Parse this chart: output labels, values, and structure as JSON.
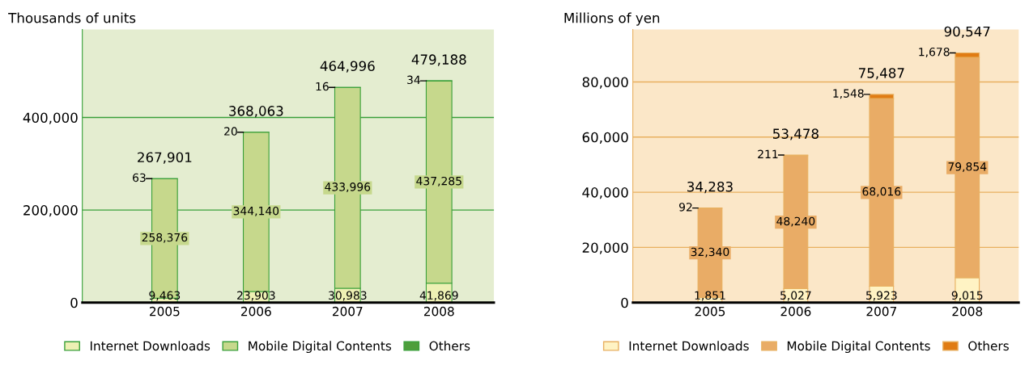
{
  "chart_data": [
    {
      "type": "bar",
      "title": "Thousands of units",
      "stacked": true,
      "categories": [
        "2005",
        "2006",
        "2007",
        "2008"
      ],
      "series": [
        {
          "name": "Internet Downloads",
          "color": "#eef0b4",
          "values": [
            9463,
            23903,
            30983,
            41869
          ],
          "value_labels": [
            "9,463",
            "23,903",
            "30,983",
            "41,869"
          ]
        },
        {
          "name": "Mobile Digital Contents",
          "color": "#c6d88c",
          "values": [
            258376,
            344140,
            433996,
            437285
          ],
          "value_labels": [
            "258,376",
            "344,140",
            "433,996",
            "437,285"
          ]
        },
        {
          "name": "Others",
          "color": "#4e9e3c",
          "values": [
            63,
            20,
            16,
            34
          ],
          "value_labels": [
            "63",
            "20",
            "16",
            "34"
          ]
        }
      ],
      "totals": [
        "267,901",
        "368,063",
        "464,996",
        "479,188"
      ],
      "ylim": [
        0,
        590000
      ],
      "yticks": [
        {
          "value": 0,
          "label": "0"
        },
        {
          "value": 200000,
          "label": "200,000"
        },
        {
          "value": 400000,
          "label": "400,000"
        }
      ],
      "grid": "y",
      "legend": "bottom"
    },
    {
      "type": "bar",
      "title": "Millions of yen",
      "stacked": true,
      "categories": [
        "2005",
        "2006",
        "2007",
        "2008"
      ],
      "series": [
        {
          "name": "Internet Downloads",
          "color": "#fff3c4",
          "values": [
            1851,
            5027,
            5923,
            9015
          ],
          "value_labels": [
            "1,851",
            "5,027",
            "5,923",
            "9,015"
          ]
        },
        {
          "name": "Mobile Digital Contents",
          "color": "#e9ac66",
          "values": [
            32340,
            48240,
            68016,
            79854
          ],
          "value_labels": [
            "32,340",
            "48,240",
            "68,016",
            "79,854"
          ]
        },
        {
          "name": "Others",
          "color": "#e07c14",
          "values": [
            92,
            211,
            1548,
            1678
          ],
          "value_labels": [
            "92",
            "211",
            "1,548",
            "1,678"
          ]
        }
      ],
      "totals": [
        "34,283",
        "53,478",
        "75,487",
        "90,547"
      ],
      "ylim": [
        0,
        99000
      ],
      "yticks": [
        {
          "value": 0,
          "label": "0"
        },
        {
          "value": 20000,
          "label": "20,000"
        },
        {
          "value": 40000,
          "label": "40,000"
        },
        {
          "value": 60000,
          "label": "60,000"
        },
        {
          "value": 80000,
          "label": "80,000"
        }
      ],
      "grid": "y",
      "legend": "bottom"
    }
  ]
}
